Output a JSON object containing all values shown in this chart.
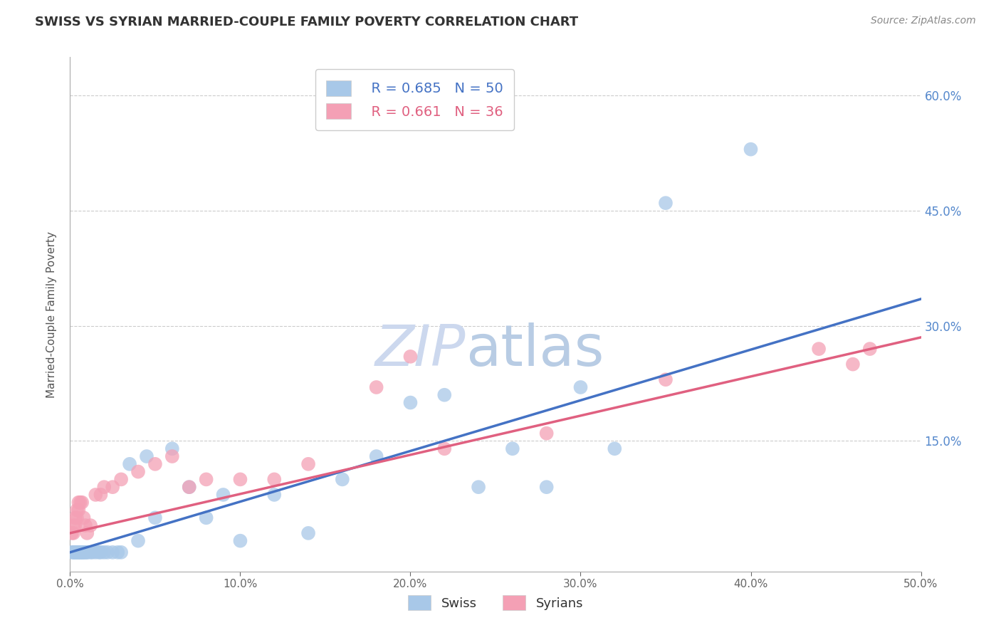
{
  "title": "SWISS VS SYRIAN MARRIED-COUPLE FAMILY POVERTY CORRELATION CHART",
  "source": "Source: ZipAtlas.com",
  "ylabel": "Married-Couple Family Poverty",
  "xlim": [
    0.0,
    0.5
  ],
  "ylim": [
    -0.02,
    0.65
  ],
  "xtick_labels": [
    "0.0%",
    "10.0%",
    "20.0%",
    "30.0%",
    "40.0%",
    "50.0%"
  ],
  "xtick_vals": [
    0.0,
    0.1,
    0.2,
    0.3,
    0.4,
    0.5
  ],
  "ytick_labels": [
    "15.0%",
    "30.0%",
    "45.0%",
    "60.0%"
  ],
  "ytick_vals": [
    0.15,
    0.3,
    0.45,
    0.6
  ],
  "legend_r_swiss": "R = 0.685",
  "legend_n_swiss": "N = 50",
  "legend_r_syrians": "R = 0.661",
  "legend_n_syrians": "N = 36",
  "swiss_color": "#a8c8e8",
  "syrian_color": "#f4a0b5",
  "swiss_line_color": "#4472c4",
  "syrian_line_color": "#e06080",
  "background_color": "#ffffff",
  "grid_color": "#cccccc",
  "swiss_line_start_y": 0.005,
  "swiss_line_end_y": 0.335,
  "syrian_line_start_y": 0.03,
  "syrian_line_end_y": 0.285,
  "swiss_scatter_x": [
    0.001,
    0.002,
    0.002,
    0.003,
    0.003,
    0.004,
    0.004,
    0.005,
    0.005,
    0.006,
    0.006,
    0.007,
    0.007,
    0.008,
    0.008,
    0.009,
    0.01,
    0.01,
    0.012,
    0.013,
    0.015,
    0.017,
    0.018,
    0.02,
    0.022,
    0.025,
    0.028,
    0.03,
    0.035,
    0.04,
    0.045,
    0.05,
    0.06,
    0.07,
    0.08,
    0.09,
    0.1,
    0.12,
    0.14,
    0.16,
    0.18,
    0.2,
    0.22,
    0.24,
    0.26,
    0.28,
    0.3,
    0.32,
    0.35,
    0.4
  ],
  "swiss_scatter_y": [
    0.005,
    0.005,
    0.005,
    0.005,
    0.005,
    0.005,
    0.005,
    0.005,
    0.005,
    0.005,
    0.005,
    0.005,
    0.005,
    0.005,
    0.005,
    0.005,
    0.005,
    0.005,
    0.005,
    0.005,
    0.005,
    0.005,
    0.005,
    0.005,
    0.005,
    0.005,
    0.005,
    0.005,
    0.12,
    0.02,
    0.13,
    0.05,
    0.14,
    0.09,
    0.05,
    0.08,
    0.02,
    0.08,
    0.03,
    0.1,
    0.13,
    0.2,
    0.21,
    0.09,
    0.14,
    0.09,
    0.22,
    0.14,
    0.46,
    0.53
  ],
  "syrian_scatter_x": [
    0.001,
    0.002,
    0.002,
    0.003,
    0.003,
    0.004,
    0.004,
    0.005,
    0.005,
    0.006,
    0.007,
    0.008,
    0.009,
    0.01,
    0.012,
    0.015,
    0.018,
    0.02,
    0.025,
    0.03,
    0.04,
    0.05,
    0.06,
    0.07,
    0.08,
    0.1,
    0.12,
    0.14,
    0.18,
    0.2,
    0.22,
    0.28,
    0.35,
    0.44,
    0.46,
    0.47
  ],
  "syrian_scatter_y": [
    0.03,
    0.03,
    0.04,
    0.04,
    0.05,
    0.05,
    0.06,
    0.06,
    0.07,
    0.07,
    0.07,
    0.05,
    0.04,
    0.03,
    0.04,
    0.08,
    0.08,
    0.09,
    0.09,
    0.1,
    0.11,
    0.12,
    0.13,
    0.09,
    0.1,
    0.1,
    0.1,
    0.12,
    0.22,
    0.26,
    0.14,
    0.16,
    0.23,
    0.27,
    0.25,
    0.27
  ]
}
